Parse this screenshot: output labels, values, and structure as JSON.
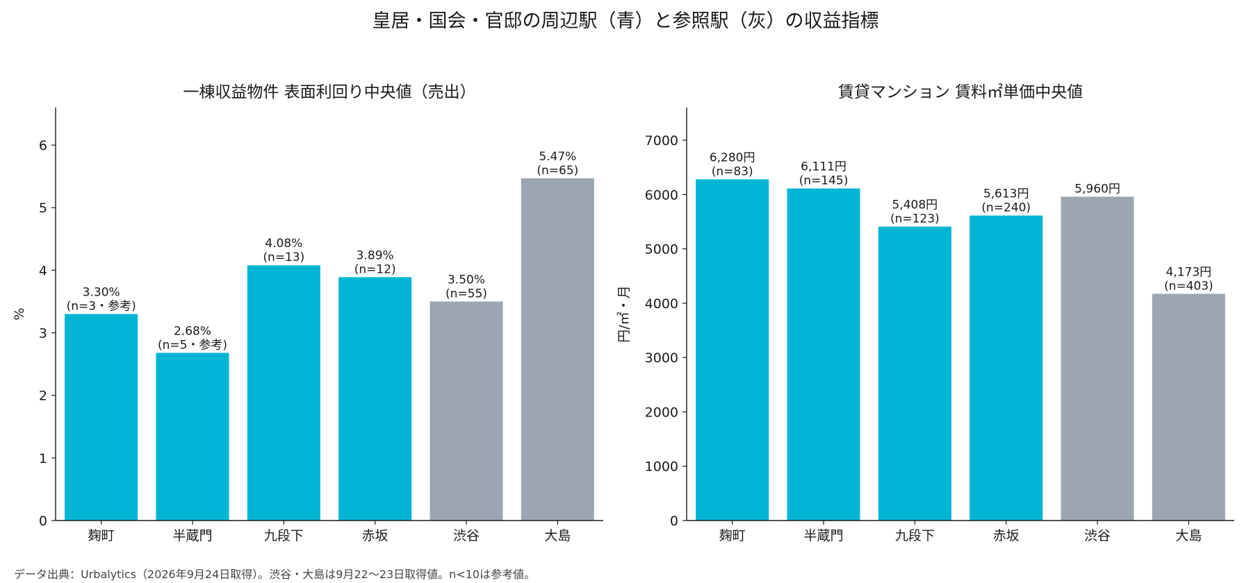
{
  "title": "皇居・国会・官邸の周辺駅（青）と参照駅（灰）の収益指標",
  "footnote": "データ出典：Urbalytics（2026年9月24日取得）。渋谷・大島は9月22〜23日取得値。n<10は参考値。",
  "colors": {
    "focus": "#00b5d4",
    "reference": "#9ca6b2"
  },
  "chart_data": [
    {
      "type": "bar",
      "title": "一棟収益物件 表面利回り中央値（売出）",
      "xlabel": "",
      "ylabel": "%",
      "ylim": [
        0,
        6.6
      ],
      "yticks": [
        0,
        1,
        2,
        3,
        4,
        5,
        6
      ],
      "categories": [
        "麹町",
        "半蔵門",
        "九段下",
        "赤坂",
        "渋谷",
        "大島"
      ],
      "values": [
        3.3,
        2.68,
        4.08,
        3.89,
        3.5,
        5.47
      ],
      "groups": [
        "focus",
        "focus",
        "focus",
        "focus",
        "reference",
        "reference"
      ],
      "value_labels": [
        "3.30%",
        "2.68%",
        "4.08%",
        "3.89%",
        "3.50%",
        "5.47%"
      ],
      "n_labels": [
        "(n=3・参考)",
        "(n=5・参考)",
        "(n=13)",
        "(n=12)",
        "(n=55)",
        "(n=65)"
      ],
      "grid": false
    },
    {
      "type": "bar",
      "title": "賃貸マンション 賃料㎡単価中央値",
      "xlabel": "",
      "ylabel": "円/㎡・月",
      "ylim": [
        0,
        7600
      ],
      "yticks": [
        0,
        1000,
        2000,
        3000,
        4000,
        5000,
        6000,
        7000
      ],
      "categories": [
        "麹町",
        "半蔵門",
        "九段下",
        "赤坂",
        "渋谷",
        "大島"
      ],
      "values": [
        6280,
        6111,
        5408,
        5613,
        5960,
        4173
      ],
      "groups": [
        "focus",
        "focus",
        "focus",
        "focus",
        "reference",
        "reference"
      ],
      "value_labels": [
        "6,280円",
        "6,111円",
        "5,408円",
        "5,613円",
        "5,960円",
        "4,173円"
      ],
      "n_labels": [
        "(n=83)",
        "(n=145)",
        "(n=123)",
        "(n=240)",
        "",
        "(n=403)"
      ],
      "grid": false
    }
  ]
}
